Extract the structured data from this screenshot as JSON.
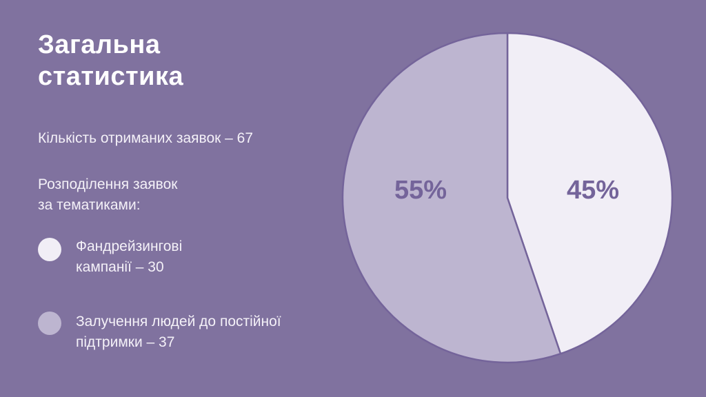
{
  "title_lines": [
    "Загальна",
    "статистика"
  ],
  "total_text": "Кількість отриманих заявок – 67",
  "distribution_lines": [
    "Розподілення заявок",
    "за тематиками:"
  ],
  "legend": [
    {
      "lines": [
        "Фандрейзингові",
        "кампанії – 30"
      ],
      "color": "#f1eef6"
    },
    {
      "lines": [
        "Залучення людей до постійної",
        "підтримки – 37"
      ],
      "color": "#bdb5d0"
    }
  ],
  "colors": {
    "background": "#80729f",
    "slice_outline": "#74649a",
    "label_text": "#74649a"
  },
  "chart_data": {
    "type": "pie",
    "categories": [
      "Фандрейзингові кампанії",
      "Залучення людей до постійної підтримки"
    ],
    "values": [
      30,
      37
    ],
    "percent_labels": [
      "45%",
      "55%"
    ],
    "colors": [
      "#f1eef6",
      "#bdb5d0"
    ],
    "start_angle": "top",
    "direction": "clockwise"
  }
}
